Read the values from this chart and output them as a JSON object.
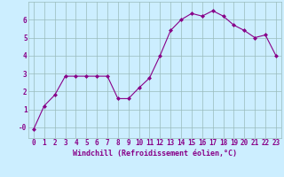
{
  "x": [
    0,
    1,
    2,
    3,
    4,
    5,
    6,
    7,
    8,
    9,
    10,
    11,
    12,
    13,
    14,
    15,
    16,
    17,
    18,
    19,
    20,
    21,
    22,
    23
  ],
  "y": [
    -0.1,
    1.2,
    1.8,
    2.85,
    2.85,
    2.85,
    2.85,
    2.85,
    1.6,
    1.6,
    2.2,
    2.75,
    4.0,
    5.4,
    6.0,
    6.35,
    6.2,
    6.5,
    6.2,
    5.7,
    5.4,
    5.0,
    5.15,
    4.0
  ],
  "line_color": "#880088",
  "marker": "D",
  "marker_size": 2.0,
  "bg_color": "#cceeff",
  "grid_color": "#99bbbb",
  "xlabel": "Windchill (Refroidissement éolien,°C)",
  "xlabel_fontsize": 6.0,
  "tick_fontsize": 5.5,
  "ylim": [
    -0.6,
    7.0
  ],
  "xlim": [
    -0.5,
    23.5
  ],
  "yticks": [
    0,
    1,
    2,
    3,
    4,
    5,
    6
  ],
  "ytick_labels": [
    "-0",
    "1",
    "2",
    "3",
    "4",
    "5",
    "6"
  ],
  "xticks": [
    0,
    1,
    2,
    3,
    4,
    5,
    6,
    7,
    8,
    9,
    10,
    11,
    12,
    13,
    14,
    15,
    16,
    17,
    18,
    19,
    20,
    21,
    22,
    23
  ]
}
